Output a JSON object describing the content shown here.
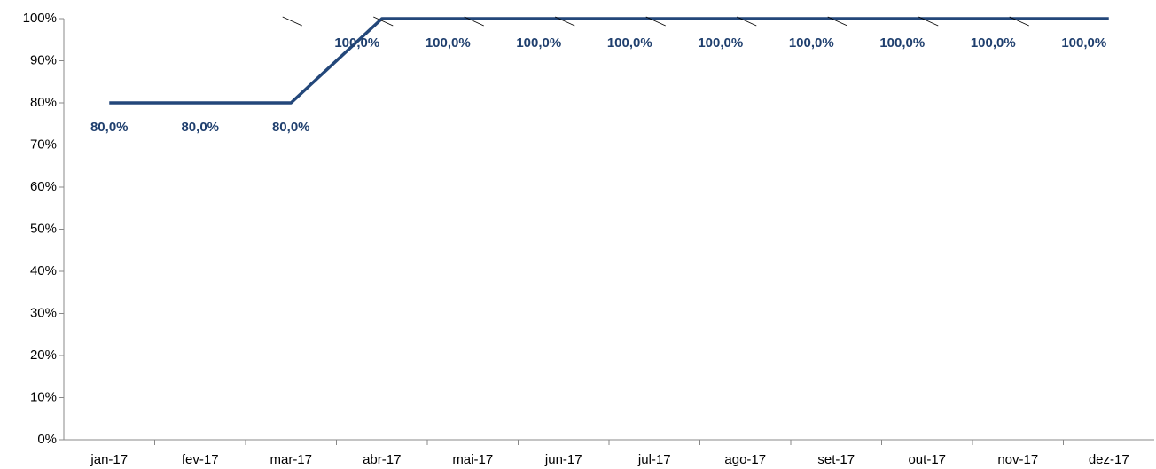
{
  "chart_data": {
    "type": "line",
    "categories": [
      "jan-17",
      "fev-17",
      "mar-17",
      "abr-17",
      "mai-17",
      "jun-17",
      "jul-17",
      "ago-17",
      "set-17",
      "out-17",
      "nov-17",
      "dez-17"
    ],
    "series": [
      {
        "color": "#23477a",
        "values": [
          80,
          80,
          80,
          100,
          100,
          100,
          100,
          100,
          100,
          100,
          100,
          100
        ],
        "value_labels": [
          "80,0%",
          "80,0%",
          "80,0%",
          "100,0%",
          "100,0%",
          "100,0%",
          "100,0%",
          "100,0%",
          "100,0%",
          "100,0%",
          "100,0%",
          "100,0%"
        ]
      }
    ],
    "ylim": [
      0,
      100
    ],
    "yticks": [
      {
        "value": 0,
        "label": "0%"
      },
      {
        "value": 10,
        "label": "10%"
      },
      {
        "value": 20,
        "label": "20%"
      },
      {
        "value": 30,
        "label": "30%"
      },
      {
        "value": 40,
        "label": "40%"
      },
      {
        "value": 50,
        "label": "50%"
      },
      {
        "value": 60,
        "label": "60%"
      },
      {
        "value": 70,
        "label": "70%"
      },
      {
        "value": 80,
        "label": "80%"
      },
      {
        "value": 90,
        "label": "90%"
      },
      {
        "value": 100,
        "label": "100%"
      }
    ]
  }
}
